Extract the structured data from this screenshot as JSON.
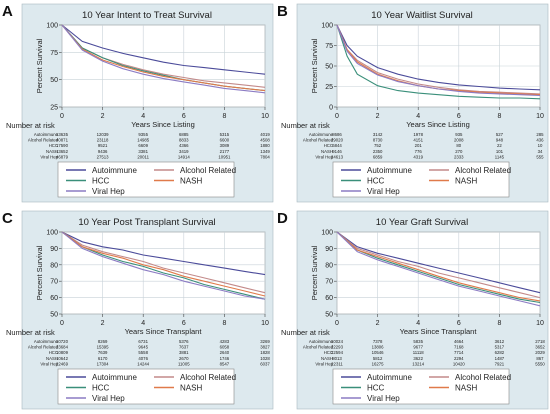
{
  "chart_data": [
    {
      "panel_label": "A",
      "type": "line",
      "title": "10 Year Intent to Treat Survival",
      "xlabel": "Years Since Listing",
      "ylabel": "Percent Survival",
      "xlim": [
        0,
        10
      ],
      "ylim": [
        25,
        100
      ],
      "x_ticks": [
        "0",
        "2",
        "4",
        "6",
        "8",
        "10"
      ],
      "y_ticks": [
        "25",
        "50",
        "75",
        "100"
      ],
      "grid": true,
      "x": [
        0,
        1,
        2,
        3,
        4,
        5,
        6,
        7,
        8,
        9,
        10
      ],
      "series": [
        {
          "name": "Autoimmune",
          "values": [
            100,
            85,
            79,
            74,
            70,
            66,
            63,
            61,
            59,
            57,
            55
          ]
        },
        {
          "name": "Alcohol Related",
          "values": [
            100,
            79,
            70,
            64,
            59,
            55,
            52,
            49,
            47,
            45,
            43
          ]
        },
        {
          "name": "HCC",
          "values": [
            100,
            79,
            70,
            63,
            58,
            54,
            50,
            47,
            44,
            42,
            40
          ]
        },
        {
          "name": "NASH",
          "values": [
            100,
            78,
            68,
            62,
            57,
            53,
            50,
            47,
            44,
            42,
            40
          ]
        },
        {
          "name": "Viral Hep",
          "values": [
            100,
            77,
            67,
            60,
            55,
            51,
            48,
            45,
            42,
            40,
            38
          ]
        }
      ],
      "risk_table": {
        "heading": "Number at risk",
        "rows": [
          {
            "label": "Autoimmune",
            "values": [
              "13635",
              "12039",
              "9355",
              "6885",
              "5315",
              "4019"
            ]
          },
          {
            "label": "Alcohol Related",
            "values": [
              "40871",
              "23118",
              "14985",
              "8833",
              "6600",
              "4508"
            ]
          },
          {
            "label": "HCC",
            "values": [
              "17590",
              "9521",
              "6609",
              "4366",
              "3089",
              "1880"
            ]
          },
          {
            "label": "NASH",
            "values": [
              "13652",
              "9436",
              "3381",
              "3419",
              "2177",
              "1349"
            ]
          },
          {
            "label": "Viral Hep",
            "values": [
              "46879",
              "27513",
              "20011",
              "14914",
              "10951",
              "7804"
            ]
          }
        ]
      }
    },
    {
      "panel_label": "B",
      "type": "line",
      "title": "10 Year Waitlist Survival",
      "xlabel": "Years Since Listing",
      "ylabel": "Percent Survival",
      "xlim": [
        0,
        10
      ],
      "ylim": [
        0,
        100
      ],
      "x_ticks": [
        "0",
        "2",
        "4",
        "6",
        "8",
        "10"
      ],
      "y_ticks": [
        "0",
        "25",
        "50",
        "75",
        "100"
      ],
      "grid": true,
      "x": [
        0,
        0.5,
        1,
        2,
        3,
        4,
        5,
        6,
        7,
        8,
        9,
        10
      ],
      "series": [
        {
          "name": "Autoimmune",
          "values": [
            100,
            75,
            62,
            48,
            40,
            34,
            30,
            27,
            25,
            23,
            22,
            21
          ]
        },
        {
          "name": "Alcohol Related",
          "values": [
            100,
            70,
            57,
            42,
            34,
            28,
            24,
            21,
            19,
            18,
            17,
            16
          ]
        },
        {
          "name": "HCC",
          "values": [
            100,
            62,
            40,
            26,
            20,
            17,
            15,
            13,
            12,
            11,
            11,
            10
          ]
        },
        {
          "name": "NASH",
          "values": [
            100,
            70,
            55,
            40,
            32,
            26,
            22,
            20,
            18,
            17,
            16,
            15
          ]
        },
        {
          "name": "Viral Hep",
          "values": [
            100,
            68,
            53,
            39,
            31,
            26,
            22,
            19,
            17,
            16,
            15,
            14
          ]
        }
      ],
      "risk_table": {
        "heading": "Number at risk",
        "rows": [
          {
            "label": "Autoimmune",
            "values": [
              "8686",
              "3142",
              "1978",
              "935",
              "527",
              "285"
            ]
          },
          {
            "label": "Alcohol Related",
            "values": [
              "29020",
              "8730",
              "4151",
              "2008",
              "948",
              "436"
            ]
          },
          {
            "label": "HCC",
            "values": [
              "6844",
              "752",
              "201",
              "80",
              "22",
              "10"
            ]
          },
          {
            "label": "NASH",
            "values": [
              "9146",
              "2350",
              "776",
              "270",
              "101",
              "34"
            ]
          },
          {
            "label": "Viral Hep",
            "values": [
              "24613",
              "6859",
              "4319",
              "2333",
              "1145",
              "555"
            ]
          }
        ]
      }
    },
    {
      "panel_label": "C",
      "type": "line",
      "title": "10 Year Post Transplant Survival",
      "xlabel": "Years Since Transplant",
      "ylabel": "Percent Survival",
      "xlim": [
        0,
        10
      ],
      "ylim": [
        50,
        100
      ],
      "x_ticks": [
        "0",
        "2",
        "4",
        "6",
        "8",
        "10"
      ],
      "y_ticks": [
        "50",
        "60",
        "70",
        "80",
        "90",
        "100"
      ],
      "grid": true,
      "x": [
        0,
        1,
        2,
        3,
        4,
        5,
        6,
        7,
        8,
        9,
        10
      ],
      "series": [
        {
          "name": "Autoimmune",
          "values": [
            100,
            94,
            91,
            89,
            86,
            84,
            82,
            80,
            78,
            76,
            74
          ]
        },
        {
          "name": "Alcohol Related",
          "values": [
            100,
            92,
            88,
            85,
            82,
            78,
            75,
            72,
            69,
            66,
            63
          ]
        },
        {
          "name": "HCC",
          "values": [
            100,
            91,
            86,
            82,
            79,
            75,
            72,
            68,
            65,
            62,
            59
          ]
        },
        {
          "name": "NASH",
          "values": [
            100,
            91,
            87,
            84,
            80,
            77,
            73,
            70,
            67,
            64,
            61
          ]
        },
        {
          "name": "Viral Hep",
          "values": [
            100,
            90,
            85,
            81,
            77,
            74,
            70,
            67,
            64,
            61,
            59
          ]
        }
      ],
      "risk_table": {
        "heading": "Number at risk",
        "rows": [
          {
            "label": "Autoimmune",
            "values": [
              "10720",
              "8269",
              "6731",
              "5376",
              "4283",
              "3269"
            ]
          },
          {
            "label": "Alcohol Related",
            "values": [
              "23684",
              "15395",
              "9645",
              "7637",
              "6058",
              "3827"
            ]
          },
          {
            "label": "HCC",
            "values": [
              "10809",
              "7639",
              "5558",
              "3881",
              "2640",
              "1828"
            ]
          },
          {
            "label": "NASH",
            "values": [
              "10642",
              "6170",
              "4076",
              "2670",
              "1746",
              "1028"
            ]
          },
          {
            "label": "Viral Hep",
            "values": [
              "22469",
              "17304",
              "14244",
              "11005",
              "8547",
              "6037"
            ]
          }
        ]
      }
    },
    {
      "panel_label": "D",
      "type": "line",
      "title": "10 Year Graft Survival",
      "xlabel": "Years Since Transplant",
      "ylabel": "Percent Survival",
      "xlim": [
        0,
        10
      ],
      "ylim": [
        50,
        100
      ],
      "x_ticks": [
        "0",
        "2",
        "4",
        "6",
        "8",
        "10"
      ],
      "y_ticks": [
        "50",
        "60",
        "70",
        "80",
        "90",
        "100"
      ],
      "grid": true,
      "x": [
        0,
        1,
        2,
        3,
        4,
        5,
        6,
        7,
        8,
        9,
        10
      ],
      "series": [
        {
          "name": "Autoimmune",
          "values": [
            100,
            91,
            87,
            84,
            81,
            78,
            75,
            72,
            69,
            66,
            63
          ]
        },
        {
          "name": "Alcohol Related",
          "values": [
            100,
            90,
            86,
            82,
            79,
            75,
            72,
            69,
            66,
            63,
            60
          ]
        },
        {
          "name": "HCC",
          "values": [
            100,
            89,
            84,
            80,
            76,
            72,
            68,
            65,
            62,
            59,
            57
          ]
        },
        {
          "name": "NASH",
          "values": [
            100,
            89,
            85,
            81,
            77,
            73,
            69,
            66,
            63,
            60,
            58
          ]
        },
        {
          "name": "Viral Hep",
          "values": [
            100,
            88,
            83,
            79,
            75,
            71,
            67,
            64,
            61,
            58,
            55
          ]
        }
      ],
      "risk_table": {
        "heading": "Number at risk",
        "rows": [
          {
            "label": "Autoimmune",
            "values": [
              "10024",
              "7378",
              "5835",
              "4664",
              "3612",
              "2718"
            ]
          },
          {
            "label": "Alcohol Related",
            "values": [
              "22293",
              "13806",
              "9677",
              "7168",
              "5317",
              "3652"
            ]
          },
          {
            "label": "HCC",
            "values": [
              "22594",
              "10546",
              "11118",
              "7714",
              "6282",
              "2029"
            ]
          },
          {
            "label": "NASH",
            "values": [
              "8013",
              "5812",
              "3622",
              "2294",
              "1487",
              "867"
            ]
          },
          {
            "label": "Viral Hep",
            "values": [
              "22311",
              "16275",
              "13214",
              "10420",
              "7921",
              "5550"
            ]
          }
        ]
      }
    }
  ],
  "series_colors": {
    "Autoimmune": "#4b4b9a",
    "Alcohol Related": "#c38a8a",
    "HCC": "#3a8f7a",
    "NASH": "#e07a4a",
    "Viral Hep": "#8c7cc4"
  },
  "legend_order": [
    "Autoimmune",
    "Alcohol Related",
    "HCC",
    "NASH",
    "Viral Hep"
  ],
  "panel_background": "#dde9ee",
  "plot_background": "#ffffff",
  "grid_color": "#c8d2d8"
}
